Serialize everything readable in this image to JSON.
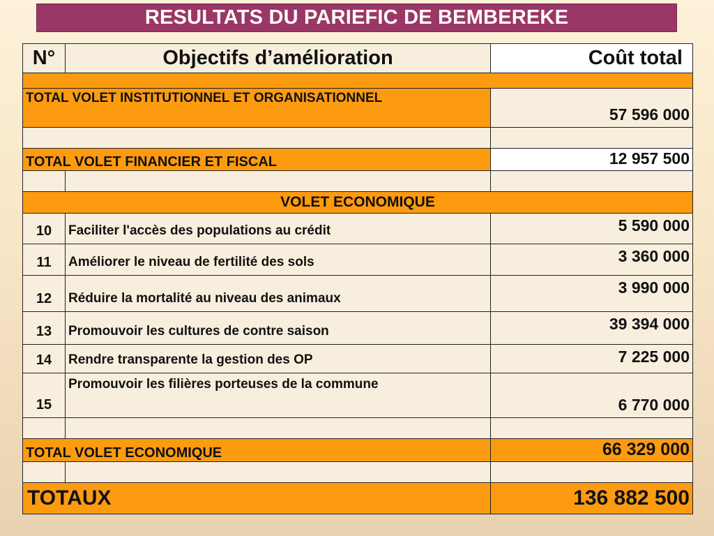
{
  "title": "RESULTATS DU PARIEFIC DE BEMBEREKE",
  "table": {
    "headers": {
      "num": "N°",
      "objective": "Objectifs d’amélioration",
      "cost": "Coût total"
    },
    "total_institutionnel": {
      "label": "TOTAL VOLET INSTITUTIONNEL ET ORGANISATIONNEL",
      "cost": "57 596 000"
    },
    "total_financier": {
      "label": "TOTAL VOLET FINANCIER ET FISCAL",
      "cost": "12 957 500"
    },
    "section_economique": "VOLET ECONOMIQUE",
    "items": [
      {
        "num": "10",
        "objective": "Faciliter l'accès des populations au crédit",
        "cost": "5 590 000"
      },
      {
        "num": "11",
        "objective": "Améliorer le niveau de fertilité des sols",
        "cost": "3 360 000"
      },
      {
        "num": "12",
        "objective": "Réduire la mortalité au niveau des animaux",
        "cost": "3 990 000"
      },
      {
        "num": "13",
        "objective": "Promouvoir les cultures de contre saison",
        "cost": "39 394 000"
      },
      {
        "num": "14",
        "objective": "Rendre transparente la gestion des OP",
        "cost": "7 225 000"
      },
      {
        "num": "15",
        "objective": "Promouvoir les filières porteuses de la commune",
        "cost": "6 770 000"
      }
    ],
    "total_economique": {
      "label": "TOTAL VOLET ECONOMIQUE",
      "cost": "66 329 000"
    },
    "totaux": {
      "label": "TOTAUX",
      "cost": "136 882 500"
    }
  },
  "colors": {
    "title_background": "#9a3766",
    "highlight_orange": "#fd9b10",
    "cell_beige": "#f7eedd"
  }
}
